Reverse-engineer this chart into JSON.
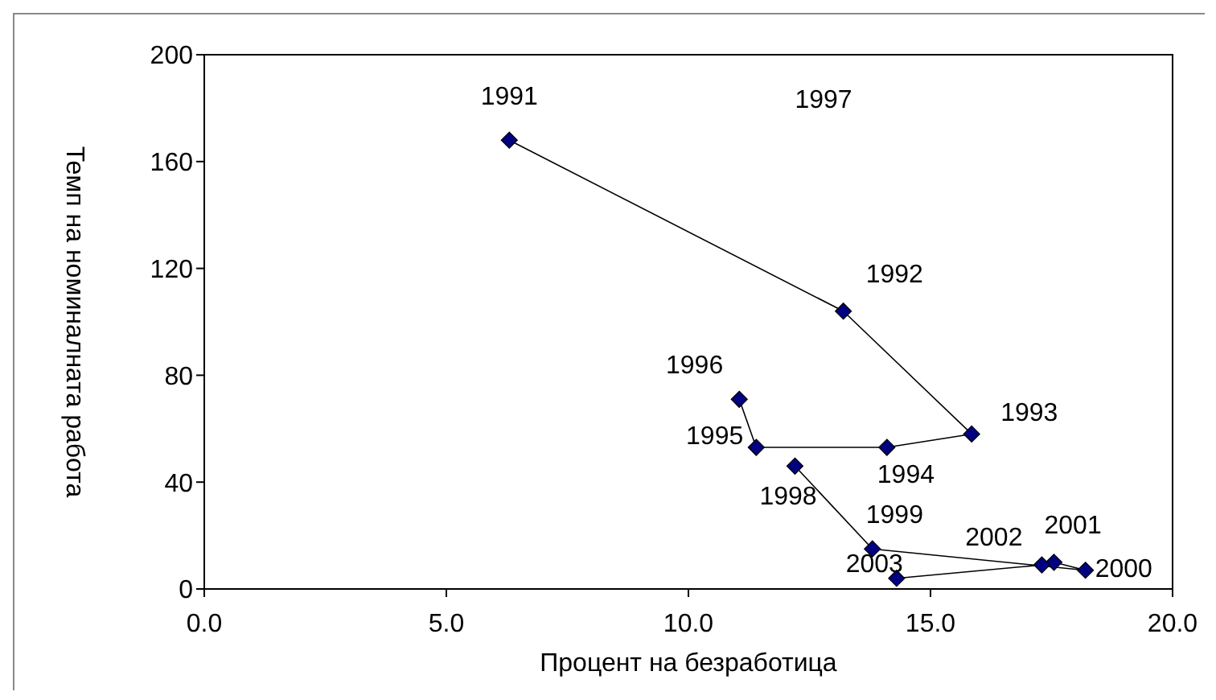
{
  "chart_data": {
    "type": "line",
    "xlabel": "Процент на безработица",
    "ylabel": "Темп на номиналната работа",
    "x": [
      6.3,
      13.2,
      15.85,
      14.1,
      11.4,
      11.05,
      null,
      12.2,
      13.8,
      18.2,
      17.55,
      17.3,
      14.3
    ],
    "series": [
      {
        "color": "#000080",
        "values": [
          168,
          104,
          58,
          53,
          53,
          71,
          null,
          46,
          15,
          7,
          10,
          9,
          4
        ]
      }
    ],
    "xlim": [
      0,
      20
    ],
    "xticks": [
      {
        "value": 0,
        "label": "0.0"
      },
      {
        "value": 5,
        "label": "5.0"
      },
      {
        "value": 10,
        "label": "10.0"
      },
      {
        "value": 15,
        "label": "15.0"
      },
      {
        "value": 20,
        "label": "20.0"
      }
    ],
    "ylim": [
      0,
      200
    ],
    "yticks": [
      0,
      40,
      80,
      120,
      160,
      200
    ],
    "marker": "diamond",
    "line_style": "solid",
    "grid": false,
    "legend": false,
    "annotations": [
      {
        "text": "1991",
        "x": 6.3,
        "y": 168
      },
      {
        "text": "1992",
        "x": 13.2,
        "y": 104
      },
      {
        "text": "1993",
        "x": 15.85,
        "y": 58
      },
      {
        "text": "1994",
        "x": 14.1,
        "y": 53
      },
      {
        "text": "1995",
        "x": 11.4,
        "y": 53
      },
      {
        "text": "1996",
        "x": 11.05,
        "y": 71
      },
      "1997",
      {
        "text": "1998",
        "x": 12.2,
        "y": 46
      },
      {
        "text": "1999",
        "x": 13.8,
        "y": 15
      },
      {
        "text": "2000",
        "x": 18.2,
        "y": 7
      },
      {
        "text": "2001",
        "x": 17.55,
        "y": 10
      },
      {
        "text": "2002",
        "x": 17.3,
        "y": 9
      },
      {
        "text": "2003",
        "x": 14.3,
        "y": 4
      }
    ]
  }
}
